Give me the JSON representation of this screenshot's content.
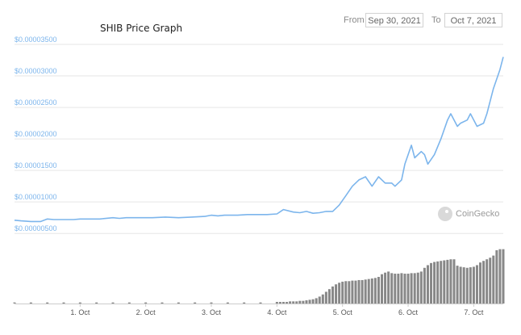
{
  "title": "SHIB Price Graph",
  "range": {
    "from_label": "From",
    "from_value": "Sep 30, 2021",
    "to_label": "To",
    "to_value": "Oct 7, 2021"
  },
  "watermark": {
    "text": "CoinGecko",
    "icon": "coingecko-logo"
  },
  "colors": {
    "line": "#7cb5ec",
    "grid": "#e6e6e6",
    "volume": "#888888"
  },
  "chart_data": {
    "type": "line",
    "title": "SHIB Price Graph",
    "x_tick_labels": [
      "1. Oct",
      "2. Oct",
      "3. Oct",
      "4. Oct",
      "5. Oct",
      "6. Oct",
      "7. Oct"
    ],
    "y_tick_labels": [
      "$0.00000500",
      "$0.00001000",
      "$0.00001500",
      "$0.00002000",
      "$0.00002500",
      "$0.00003000",
      "$0.00003500"
    ],
    "y_ticks": [
      5e-06,
      1e-05,
      1.5e-05,
      2e-05,
      2.5e-05,
      3e-05,
      3.5e-05
    ],
    "xlim": [
      0,
      7.45
    ],
    "ylim": [
      4.9e-06,
      3.5e-05
    ],
    "grid": true,
    "series": [
      {
        "x": [
          0,
          0.1,
          0.25,
          0.4,
          0.5,
          0.6,
          0.75,
          0.9,
          1.0,
          1.1,
          1.2,
          1.3,
          1.5,
          1.6,
          1.7,
          1.9,
          2.0,
          2.1,
          2.3,
          2.5,
          2.7,
          2.9,
          3.0,
          3.1,
          3.2,
          3.4,
          3.55,
          3.7,
          3.85,
          4.0,
          4.1,
          4.25,
          4.35,
          4.45,
          4.55,
          4.65,
          4.75,
          4.85,
          4.95,
          5.05,
          5.15,
          5.25,
          5.35,
          5.45,
          5.55,
          5.65,
          5.75,
          5.8,
          5.9,
          5.95,
          6.05,
          6.1,
          6.2,
          6.25,
          6.3,
          6.4,
          6.5,
          6.6,
          6.65,
          6.75,
          6.8,
          6.9,
          6.95,
          7.05,
          7.15,
          7.2,
          7.3,
          7.4,
          7.45
        ],
        "y": [
          7.1e-06,
          7e-06,
          6.9e-06,
          6.9e-06,
          7.3e-06,
          7.2e-06,
          7.2e-06,
          7.2e-06,
          7.3e-06,
          7.3e-06,
          7.3e-06,
          7.3e-06,
          7.5e-06,
          7.4e-06,
          7.5e-06,
          7.5e-06,
          7.5e-06,
          7.5e-06,
          7.6e-06,
          7.5e-06,
          7.6e-06,
          7.7e-06,
          7.9e-06,
          7.8e-06,
          7.9e-06,
          7.9e-06,
          8e-06,
          8e-06,
          8e-06,
          8.1e-06,
          8.8e-06,
          8.4e-06,
          8.3e-06,
          8.5e-06,
          8.2e-06,
          8.3e-06,
          8.5e-06,
          8.5e-06,
          9.5e-06,
          1.1e-05,
          1.25e-05,
          1.35e-05,
          1.4e-05,
          1.25e-05,
          1.4e-05,
          1.3e-05,
          1.3e-05,
          1.25e-05,
          1.35e-05,
          1.6e-05,
          1.9e-05,
          1.7e-05,
          1.8e-05,
          1.75e-05,
          1.6e-05,
          1.75e-05,
          2e-05,
          2.3e-05,
          2.4e-05,
          2.2e-05,
          2.25e-05,
          2.3e-05,
          2.4e-05,
          2.2e-05,
          2.25e-05,
          2.4e-05,
          2.8e-05,
          3.1e-05,
          3.3e-05
        ]
      }
    ],
    "volume_series": {
      "x": [
        0,
        0.25,
        0.5,
        0.75,
        1.0,
        1.25,
        1.5,
        1.75,
        2.0,
        2.25,
        2.5,
        2.75,
        3.0,
        3.25,
        3.5,
        3.75,
        4.0,
        4.05,
        4.1,
        4.15,
        4.2,
        4.25,
        4.3,
        4.35,
        4.4,
        4.45,
        4.5,
        4.55,
        4.6,
        4.65,
        4.7,
        4.75,
        4.8,
        4.85,
        4.9,
        4.95,
        5.0,
        5.05,
        5.1,
        5.15,
        5.2,
        5.25,
        5.3,
        5.35,
        5.4,
        5.45,
        5.5,
        5.55,
        5.6,
        5.65,
        5.7,
        5.75,
        5.8,
        5.85,
        5.9,
        5.95,
        6.0,
        6.05,
        6.1,
        6.15,
        6.2,
        6.25,
        6.3,
        6.35,
        6.4,
        6.45,
        6.5,
        6.55,
        6.6,
        6.65,
        6.7,
        6.75,
        6.8,
        6.85,
        6.9,
        6.95,
        7.0,
        7.05,
        7.1,
        7.15,
        7.2,
        7.25,
        7.3,
        7.35,
        7.4,
        7.45
      ],
      "y": [
        0.02,
        0.02,
        0.02,
        0.02,
        0.02,
        0.02,
        0.02,
        0.02,
        0.02,
        0.02,
        0.02,
        0.02,
        0.02,
        0.02,
        0.02,
        0.02,
        0.03,
        0.03,
        0.03,
        0.03,
        0.04,
        0.04,
        0.04,
        0.05,
        0.05,
        0.06,
        0.07,
        0.08,
        0.1,
        0.13,
        0.17,
        0.22,
        0.27,
        0.32,
        0.36,
        0.39,
        0.41,
        0.42,
        0.42,
        0.43,
        0.43,
        0.44,
        0.44,
        0.45,
        0.46,
        0.47,
        0.48,
        0.5,
        0.55,
        0.58,
        0.6,
        0.57,
        0.56,
        0.56,
        0.57,
        0.56,
        0.56,
        0.57,
        0.57,
        0.58,
        0.6,
        0.67,
        0.72,
        0.76,
        0.78,
        0.79,
        0.8,
        0.81,
        0.82,
        0.83,
        0.83,
        0.71,
        0.69,
        0.68,
        0.67,
        0.68,
        0.69,
        0.72,
        0.77,
        0.8,
        0.83,
        0.86,
        0.9,
        1.0,
        1.02,
        1.02
      ]
    }
  }
}
